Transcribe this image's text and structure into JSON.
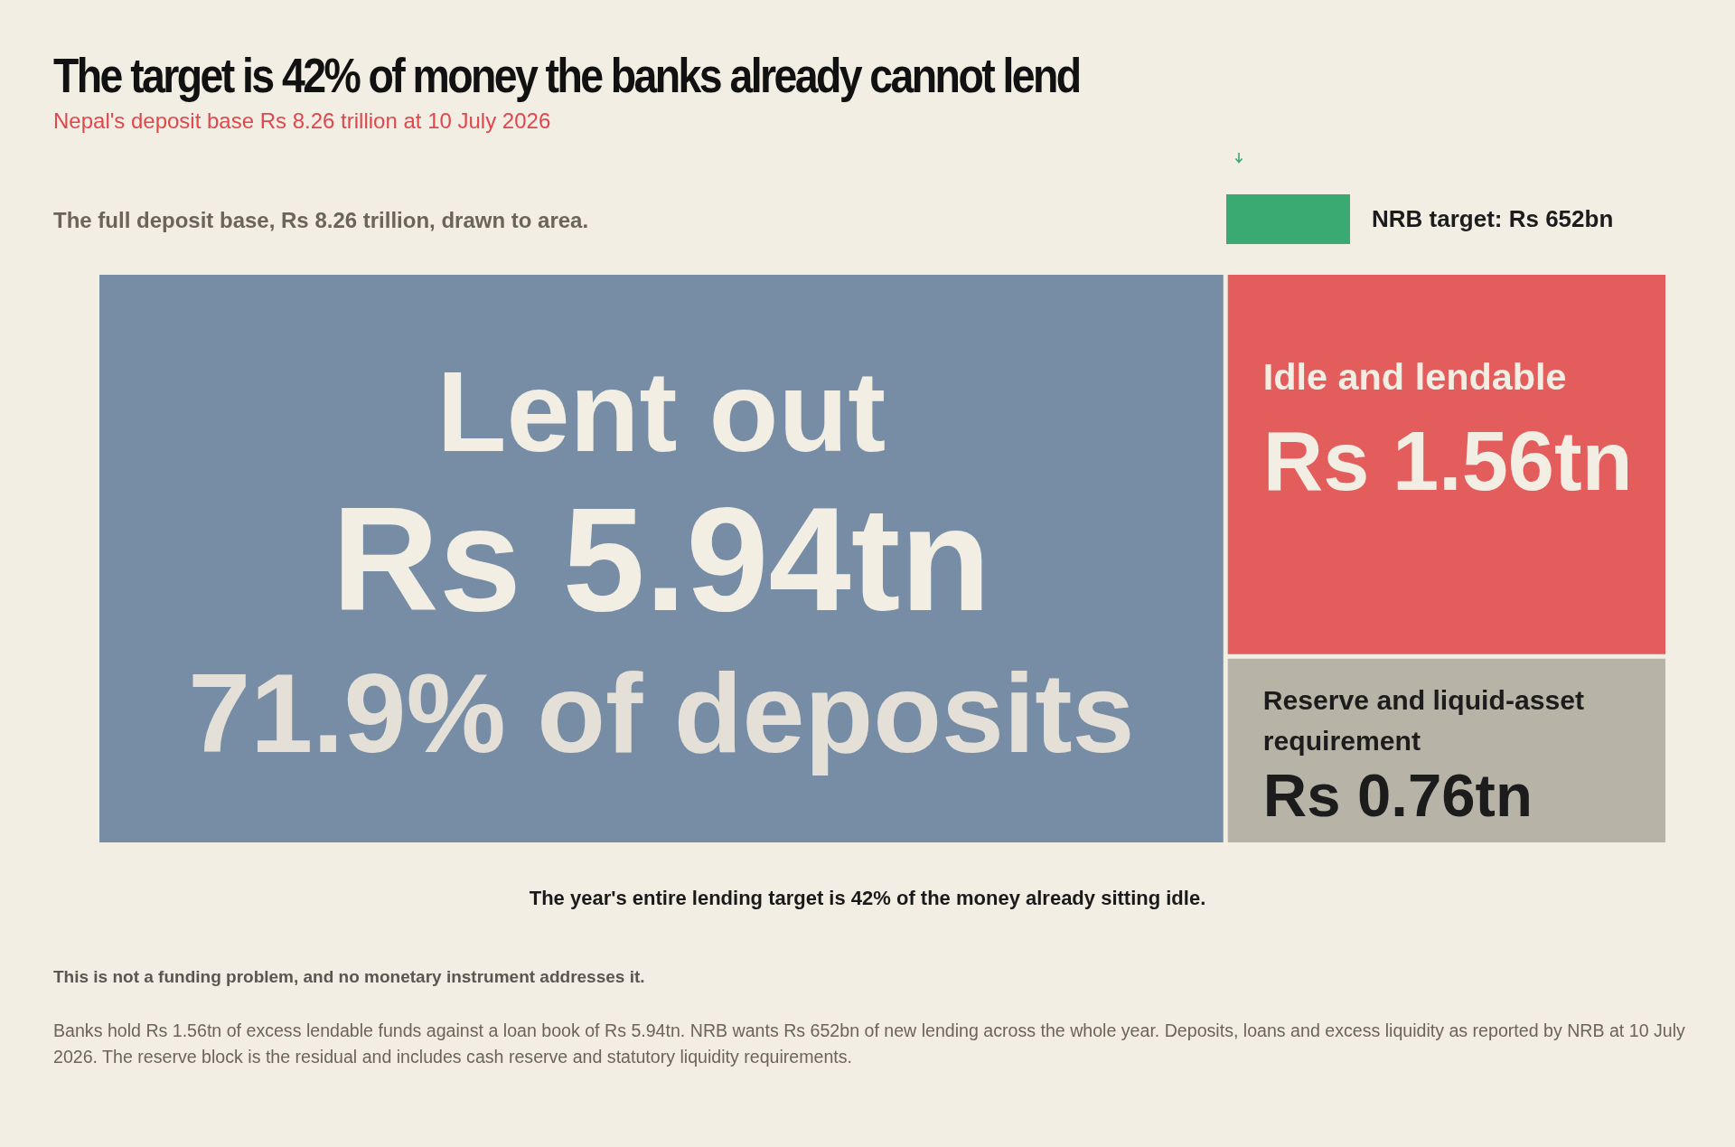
{
  "chart_data": {
    "type": "other",
    "title": "The target is 42% of money the banks already cannot lend",
    "subtitle": "Nepal's deposit base Rs 8.26 trillion at 10 July 2026",
    "categories": [
      "Lent out",
      "Idle and lendable",
      "Reserve and liquid-asset requirement"
    ],
    "values": [
      5.94,
      1.56,
      0.76
    ],
    "colors": [
      "#778da5",
      "#e35d5d",
      "#b7b3a6"
    ],
    "value_labels": [
      "Rs 5.94tn",
      "Rs 1.56tn",
      "Rs 0.76tn"
    ],
    "annotations": [
      "NRB target: Rs 652bn",
      {
        "text": "71.9% of deposits",
        "x": "Lent out"
      },
      "The full deposit base, Rs 8.26 trillion, drawn to area.",
      "The year's entire lending target is 42% of the money already sitting idle.",
      "This is not a funding problem, and no monetary instrument addresses it.",
      "Banks hold Rs 1.56tn of excess lendable funds against a loan book of Rs 5.94tn. NRB wants Rs 652bn of new lending across the whole year. Deposits, loans and excess liquidity as reported by NRB at 10 July 2026. The reserve block is the residual and includes cash reserve and statutory liquidity requirements."
    ]
  }
}
